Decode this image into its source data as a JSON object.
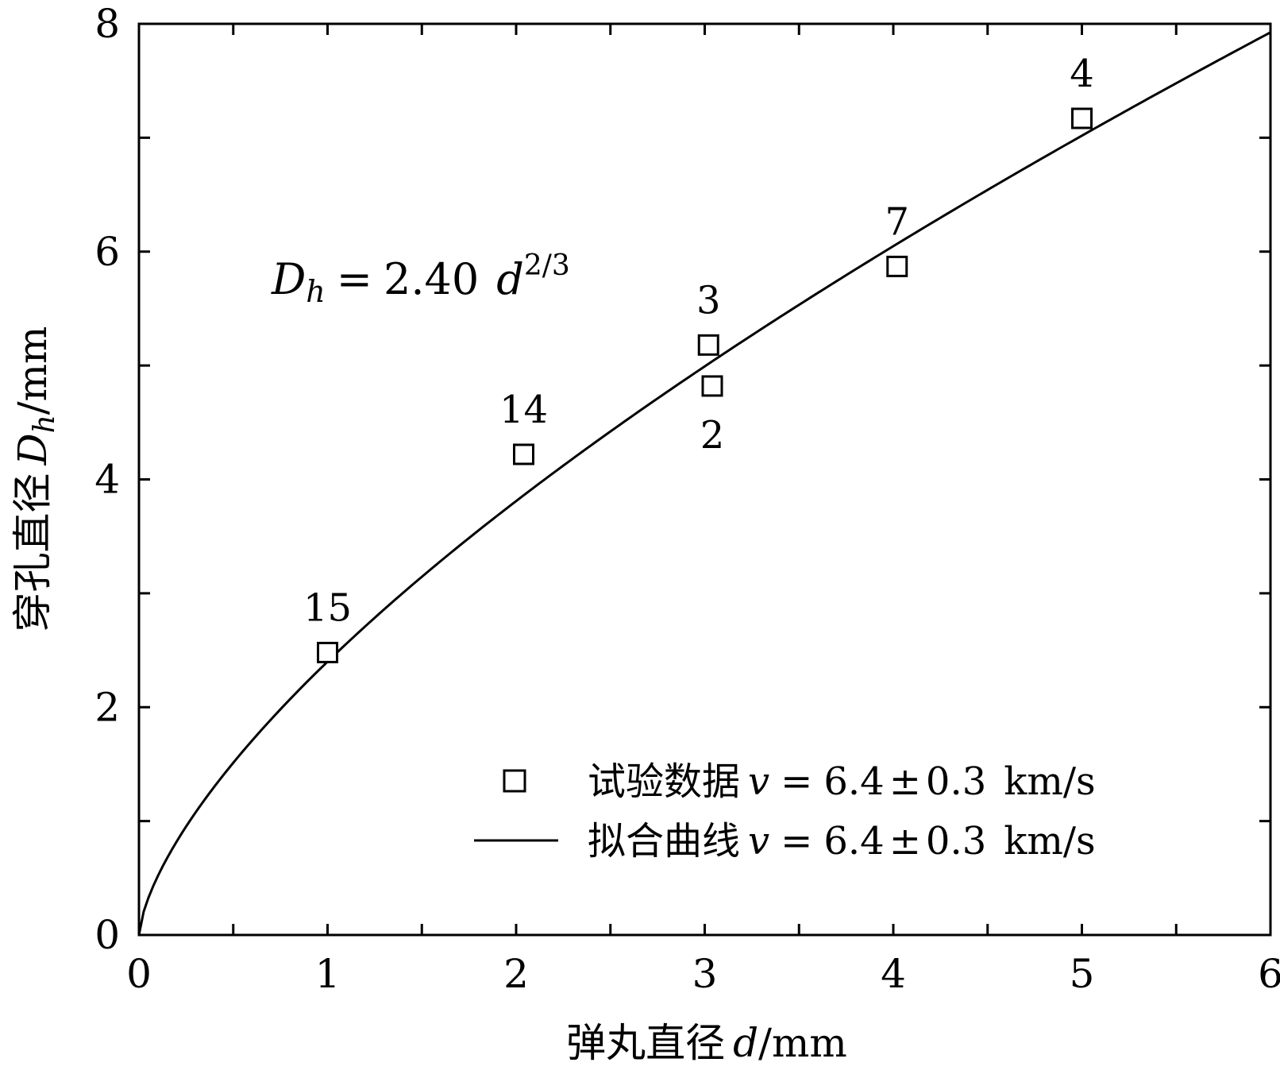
{
  "chart_data": {
    "type": "scatter",
    "xlabel": "弹丸直径 d/mm",
    "ylabel": "穿孔直径 Dh/mm",
    "xlim": [
      0,
      6
    ],
    "ylim": [
      0,
      8
    ],
    "x_ticks": [
      "0",
      "1",
      "2",
      "3",
      "4",
      "5",
      "6"
    ],
    "y_ticks": [
      "0",
      "2",
      "4",
      "6",
      "8"
    ],
    "x_minor_step": 0.5,
    "y_minor_step": 1,
    "grid": false,
    "formula": "Dh = 2.40 d^(2/3)",
    "series": [
      {
        "name": "试验数据 v = 6.4 ± 0.3 km/s",
        "kind": "scatter",
        "marker": "open-square",
        "points": [
          {
            "x": 1.0,
            "y": 2.48,
            "label": "15"
          },
          {
            "x": 2.04,
            "y": 4.22,
            "label": "14"
          },
          {
            "x": 3.02,
            "y": 5.18,
            "label": "3"
          },
          {
            "x": 3.04,
            "y": 4.82,
            "label": "2"
          },
          {
            "x": 4.02,
            "y": 5.87,
            "label": "7"
          },
          {
            "x": 5.0,
            "y": 7.17,
            "label": "4"
          }
        ]
      },
      {
        "name": "拟合曲线 v = 6.4 ± 0.3 km/s",
        "kind": "line",
        "function": {
          "coefficient": 2.4,
          "exponent": 0.6667,
          "x_from": 0,
          "x_to": 6
        }
      }
    ],
    "legend": {
      "placement": "bottom-right",
      "entries": [
        {
          "marker": "open-square",
          "prefix": "试验数据",
          "v": "v",
          "eq": "=",
          "value": "6.4",
          "pm": "±",
          "err": "0.3",
          "unit": "km/s"
        },
        {
          "marker": "line",
          "prefix": "拟合曲线",
          "v": "v",
          "eq": "=",
          "value": "6.4",
          "pm": "±",
          "err": "0.3",
          "unit": "km/s"
        }
      ]
    }
  },
  "labels": {
    "x_title_cn": "弹丸直径",
    "x_var": "d",
    "x_unit": "/mm",
    "y_title_cn": "穿孔直径",
    "y_var": "D",
    "y_sub": "h",
    "y_unit": "/mm",
    "formula_lhs": "D",
    "formula_lhs_sub": "h",
    "formula_eq": "=",
    "formula_coef": "2.40",
    "formula_var": "d",
    "formula_exp": "2/3"
  },
  "colors": {
    "ink": "#000000",
    "background": "#ffffff"
  }
}
